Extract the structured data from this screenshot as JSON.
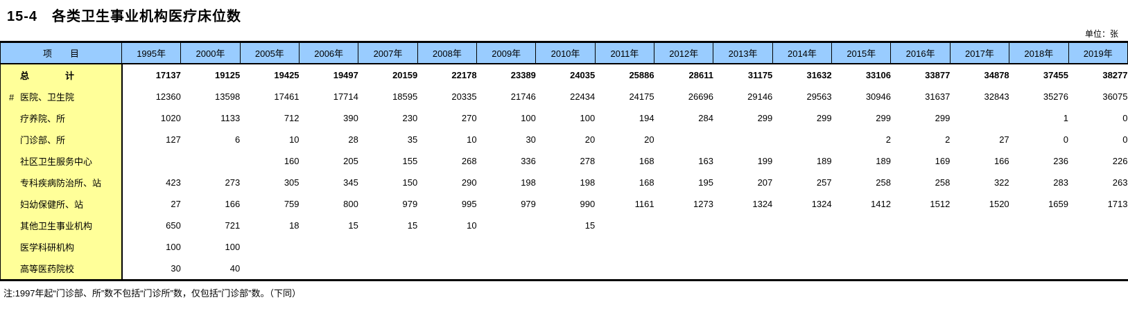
{
  "title": "15-4　各类卫生事业机构医疗床位数",
  "unit_label": "单位：张",
  "note": "注:1997年起“门诊部、所”数不包括“门诊所”数，仅包括“门诊部”数。（下同）",
  "colors": {
    "header_bg": "#99CCFF",
    "label_col_bg": "#FFFF99",
    "border": "#000000",
    "page_bg": "#FFFFFF"
  },
  "table": {
    "item_header": "项　　目",
    "year_columns": [
      "1995年",
      "2000年",
      "2005年",
      "2006年",
      "2007年",
      "2008年",
      "2009年",
      "2010年",
      "2011年",
      "2012年",
      "2013年",
      "2014年",
      "2015年",
      "2016年",
      "2017年",
      "2018年",
      "2019年"
    ],
    "rows": [
      {
        "marker": "",
        "label": "总　　　　计",
        "bold": true,
        "values": [
          "17137",
          "19125",
          "19425",
          "19497",
          "20159",
          "22178",
          "23389",
          "24035",
          "25886",
          "28611",
          "31175",
          "31632",
          "33106",
          "33877",
          "34878",
          "37455",
          "38277"
        ]
      },
      {
        "marker": "#",
        "label": "医院、卫生院",
        "bold": false,
        "values": [
          "12360",
          "13598",
          "17461",
          "17714",
          "18595",
          "20335",
          "21746",
          "22434",
          "24175",
          "26696",
          "29146",
          "29563",
          "30946",
          "31637",
          "32843",
          "35276",
          "36075"
        ]
      },
      {
        "marker": "",
        "label": "疗养院、所",
        "bold": false,
        "values": [
          "1020",
          "1133",
          "712",
          "390",
          "230",
          "270",
          "100",
          "100",
          "194",
          "284",
          "299",
          "299",
          "299",
          "299",
          "",
          "1",
          "0"
        ]
      },
      {
        "marker": "",
        "label": "门诊部、所",
        "bold": false,
        "values": [
          "127",
          "6",
          "10",
          "28",
          "35",
          "10",
          "30",
          "20",
          "20",
          "",
          "",
          "",
          "2",
          "2",
          "27",
          "0",
          "0"
        ]
      },
      {
        "marker": "",
        "label": "社区卫生服务中心",
        "bold": false,
        "values": [
          "",
          "",
          "160",
          "205",
          "155",
          "268",
          "336",
          "278",
          "168",
          "163",
          "199",
          "189",
          "189",
          "169",
          "166",
          "236",
          "226"
        ]
      },
      {
        "marker": "",
        "label": "专科疾病防治所、站",
        "bold": false,
        "values": [
          "423",
          "273",
          "305",
          "345",
          "150",
          "290",
          "198",
          "198",
          "168",
          "195",
          "207",
          "257",
          "258",
          "258",
          "322",
          "283",
          "263"
        ]
      },
      {
        "marker": "",
        "label": "妇幼保健所、站",
        "bold": false,
        "values": [
          "27",
          "166",
          "759",
          "800",
          "979",
          "995",
          "979",
          "990",
          "1161",
          "1273",
          "1324",
          "1324",
          "1412",
          "1512",
          "1520",
          "1659",
          "1713"
        ]
      },
      {
        "marker": "",
        "label": "其他卫生事业机构",
        "bold": false,
        "values": [
          "650",
          "721",
          "18",
          "15",
          "15",
          "10",
          "",
          "15",
          "",
          "",
          "",
          "",
          "",
          "",
          "",
          "",
          ""
        ]
      },
      {
        "marker": "",
        "label": "医学科研机构",
        "bold": false,
        "values": [
          "100",
          "100",
          "",
          "",
          "",
          "",
          "",
          "",
          "",
          "",
          "",
          "",
          "",
          "",
          "",
          "",
          ""
        ]
      },
      {
        "marker": "",
        "label": "高等医药院校",
        "bold": false,
        "values": [
          "30",
          "40",
          "",
          "",
          "",
          "",
          "",
          "",
          "",
          "",
          "",
          "",
          "",
          "",
          "",
          "",
          ""
        ]
      }
    ]
  }
}
